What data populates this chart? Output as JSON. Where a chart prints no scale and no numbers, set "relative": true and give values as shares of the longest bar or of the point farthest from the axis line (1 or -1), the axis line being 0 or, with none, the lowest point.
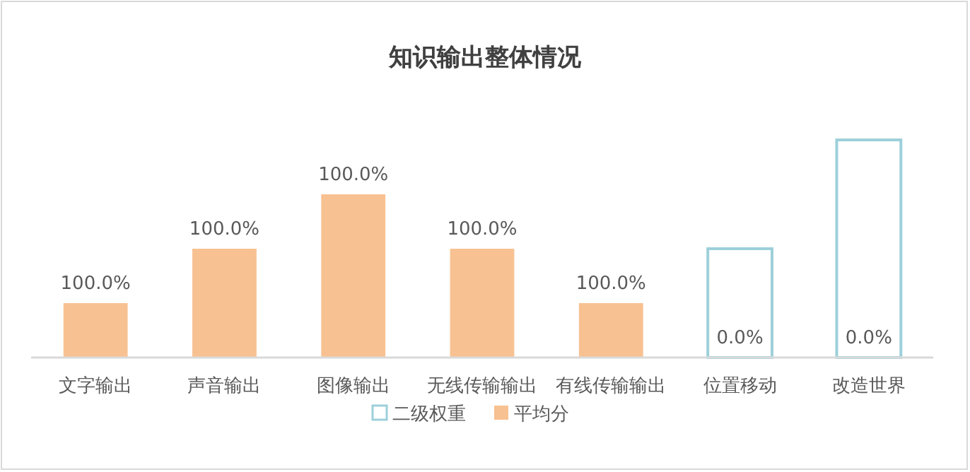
{
  "chart_data": {
    "type": "bar",
    "title": "知识输出整体情况",
    "relative": true,
    "categories": [
      "文字输出",
      "声音输出",
      "图像输出",
      "无线传输输出",
      "有线传输输出",
      "位置移动",
      "改造世界"
    ],
    "series": [
      {
        "name": "二级权重",
        "color": "#9dd0da",
        "values": [
          null,
          null,
          null,
          null,
          null,
          0.5,
          1
        ]
      },
      {
        "name": "平均分",
        "color": "#f8c191",
        "values": [
          0.25,
          0.5,
          0.75,
          0.5,
          0.25,
          0,
          0
        ]
      }
    ],
    "annotations": [
      {
        "text": "100.0%",
        "x": "文字输出",
        "y": 0.25
      },
      {
        "text": "100.0%",
        "x": "声音输出",
        "y": 0.5
      },
      {
        "text": "100.0%",
        "x": "图像输出",
        "y": 0.75
      },
      {
        "text": "100.0%",
        "x": "无线传输输出",
        "y": 0.5
      },
      {
        "text": "100.0%",
        "x": "有线传输输出",
        "y": 0.25
      },
      {
        "text": "0.0%",
        "x": "位置移动",
        "y": 0
      },
      {
        "text": "0.0%",
        "x": "改造世界",
        "y": 0
      }
    ],
    "legend": "bottom"
  }
}
